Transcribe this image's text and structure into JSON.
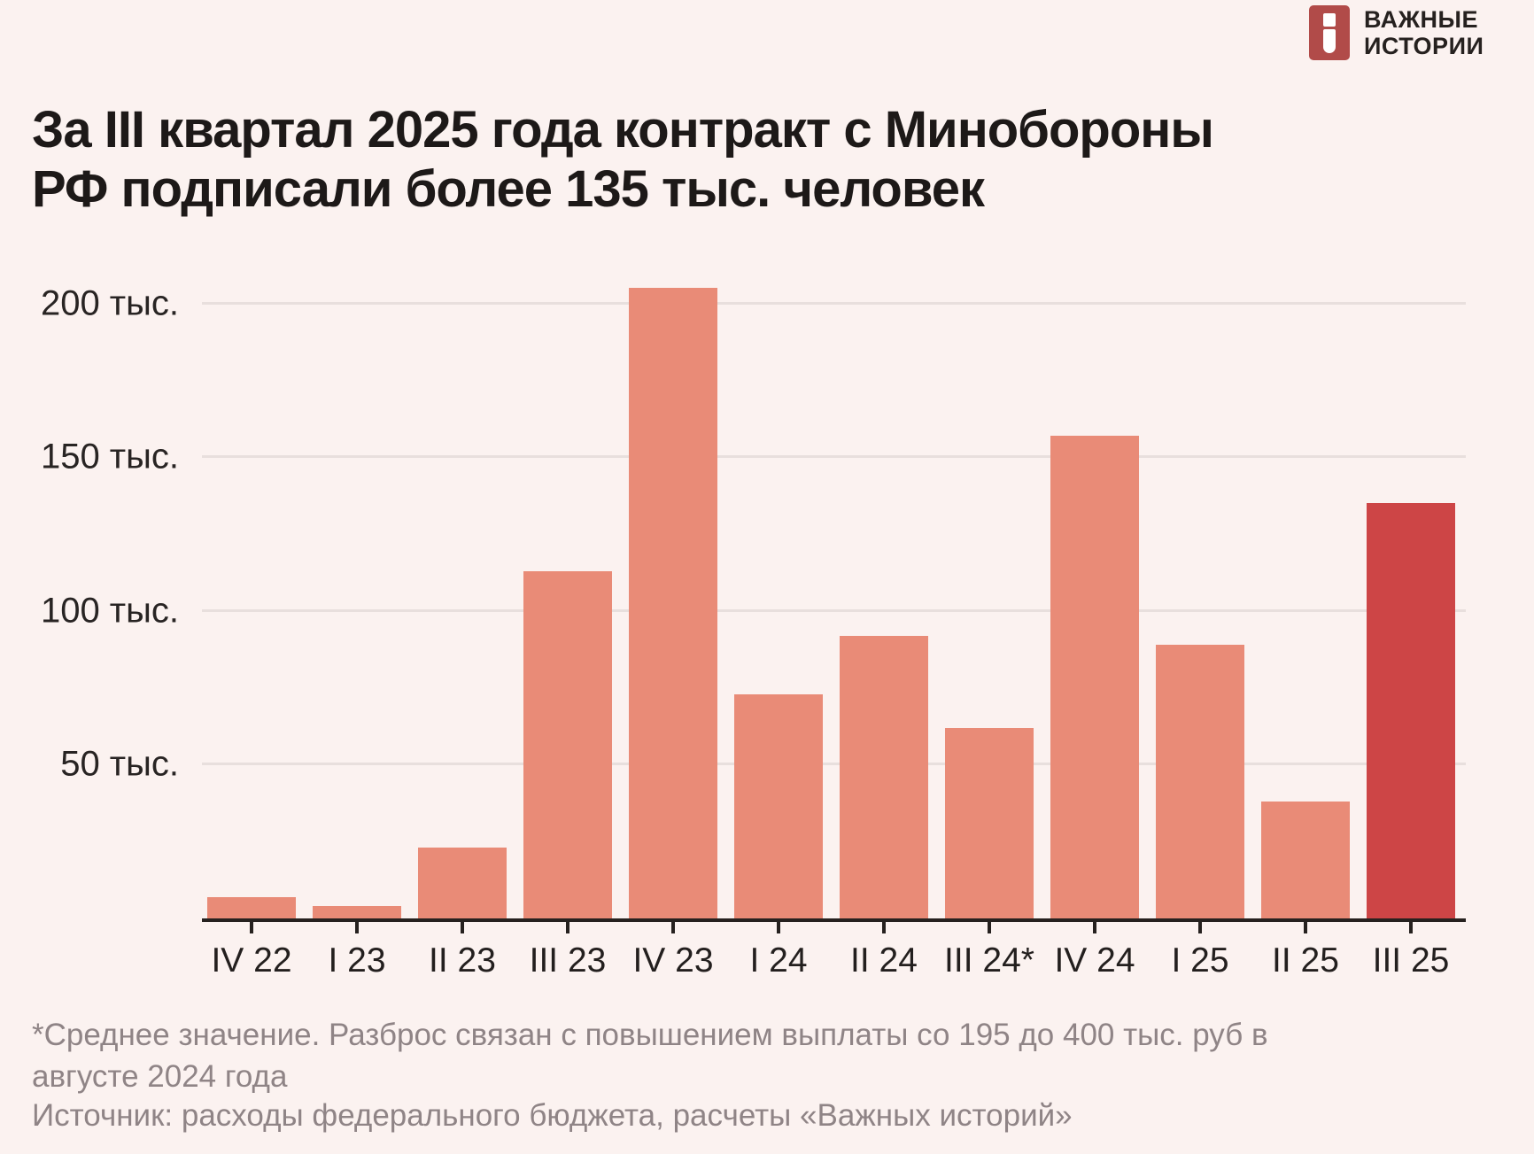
{
  "brand": {
    "line1": "ВАЖНЫЕ",
    "line2": "ИСТОРИИ"
  },
  "title": {
    "line1": "За III квартал 2025 года контракт с Минобороны",
    "line2": "РФ подписали более 135 тыс. человек"
  },
  "chart_data": {
    "type": "bar",
    "categories": [
      "IV 22",
      "I 23",
      "II 23",
      "III 23",
      "IV 23",
      "I 24",
      "II 24",
      "III 24*",
      "IV 24",
      "I 25",
      "II 25",
      "III 25"
    ],
    "values": [
      7,
      4,
      23,
      113,
      205,
      73,
      92,
      62,
      157,
      89,
      38,
      135
    ],
    "value_unit": "тыс. человек",
    "highlight_index": 11,
    "yticks": [
      {
        "value": 50,
        "label": "50 тыс."
      },
      {
        "value": 100,
        "label": "100 тыс."
      },
      {
        "value": 150,
        "label": "150 тыс."
      },
      {
        "value": 200,
        "label": "200 тыс."
      }
    ],
    "ylim": [
      0,
      218
    ],
    "grid": true,
    "legend": "none",
    "colors": {
      "bar": "#e98b77",
      "highlight": "#cd4546",
      "grid": "#e8dfdd",
      "axis": "#26211f",
      "background": "#fbf2f0",
      "logo": "#b14b49",
      "text": "#1d1918",
      "muted_text": "#8f8486"
    }
  },
  "notes": {
    "footnote": "*Среднее значение. Разброс связан с повышением выплаты со 195 до 400 тыс. руб в августе 2024 года",
    "source": "Источник: расходы федерального бюджета, расчеты «Важных историй»"
  }
}
